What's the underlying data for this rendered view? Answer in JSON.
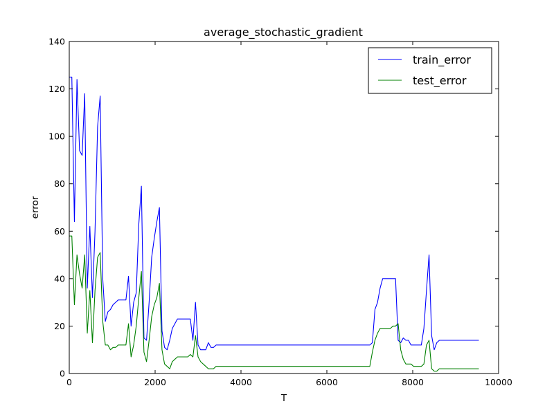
{
  "chart_data": {
    "type": "line",
    "title": "average_stochastic_gradient",
    "xlabel": "T",
    "ylabel": "error",
    "xlim": [
      0,
      10000
    ],
    "ylim": [
      0,
      140
    ],
    "xticks": [
      0,
      2000,
      4000,
      6000,
      8000,
      10000
    ],
    "yticks": [
      0,
      20,
      40,
      60,
      80,
      100,
      120,
      140
    ],
    "grid": false,
    "legend_position": "top-right",
    "series": [
      {
        "name": "train_error",
        "color": "#0000ff",
        "x": [
          0,
          60,
          120,
          180,
          240,
          300,
          360,
          420,
          480,
          540,
          600,
          660,
          720,
          780,
          840,
          900,
          960,
          1020,
          1080,
          1140,
          1200,
          1260,
          1320,
          1380,
          1440,
          1500,
          1560,
          1620,
          1680,
          1740,
          1800,
          1860,
          1920,
          1980,
          2040,
          2100,
          2160,
          2220,
          2280,
          2340,
          2400,
          2460,
          2520,
          2580,
          2640,
          2700,
          2760,
          2820,
          2880,
          2940,
          3000,
          3060,
          3120,
          3180,
          3240,
          3300,
          3360,
          3420,
          3480,
          3540,
          3600,
          4000,
          5000,
          6000,
          7000,
          7060,
          7120,
          7180,
          7240,
          7300,
          7360,
          7420,
          7480,
          7540,
          7600,
          7660,
          7720,
          7780,
          7840,
          7900,
          7960,
          8020,
          8080,
          8140,
          8200,
          8260,
          8320,
          8380,
          8440,
          8500,
          8560,
          8620,
          8680,
          8740,
          9000,
          9540
        ],
        "y": [
          125,
          125,
          64,
          124,
          94,
          92,
          118,
          36,
          62,
          32,
          60,
          104,
          117,
          40,
          22,
          26,
          27,
          29,
          30,
          31,
          31,
          31,
          31,
          41,
          20,
          30,
          34,
          63,
          79,
          15,
          14,
          30,
          49,
          57,
          64,
          70,
          18,
          11,
          10,
          14,
          19,
          21,
          23,
          23,
          23,
          23,
          23,
          23,
          14,
          30,
          12,
          10,
          10,
          10,
          13,
          11,
          11,
          12,
          12,
          12,
          12,
          12,
          12,
          12,
          12,
          13,
          27,
          30,
          36,
          40,
          40,
          40,
          40,
          40,
          40,
          14,
          13,
          15,
          14,
          14,
          12,
          12,
          12,
          12,
          12,
          19,
          35,
          50,
          16,
          10,
          13,
          14,
          14,
          14,
          14,
          14
        ]
      },
      {
        "name": "test_error",
        "color": "#008000",
        "x": [
          0,
          60,
          120,
          180,
          240,
          300,
          360,
          420,
          480,
          540,
          600,
          660,
          720,
          780,
          840,
          900,
          960,
          1020,
          1080,
          1140,
          1200,
          1260,
          1320,
          1380,
          1440,
          1500,
          1560,
          1620,
          1680,
          1740,
          1800,
          1860,
          1920,
          1980,
          2040,
          2100,
          2160,
          2220,
          2280,
          2340,
          2400,
          2460,
          2520,
          2580,
          2640,
          2700,
          2760,
          2820,
          2880,
          2940,
          3000,
          3060,
          3120,
          3180,
          3240,
          3300,
          3360,
          3420,
          3480,
          3540,
          3600,
          4000,
          5000,
          6000,
          7000,
          7060,
          7120,
          7180,
          7240,
          7300,
          7360,
          7420,
          7480,
          7540,
          7600,
          7660,
          7720,
          7780,
          7840,
          7900,
          7960,
          8020,
          8080,
          8140,
          8200,
          8260,
          8320,
          8380,
          8440,
          8500,
          8560,
          8620,
          8680,
          8740,
          9000,
          9540
        ],
        "y": [
          58,
          58,
          29,
          50,
          42,
          36,
          50,
          17,
          35,
          13,
          35,
          49,
          51,
          22,
          12,
          12,
          10,
          11,
          11,
          12,
          12,
          12,
          12,
          21,
          7,
          12,
          20,
          32,
          43,
          9,
          5,
          14,
          24,
          29,
          32,
          38,
          10,
          4,
          3,
          2,
          5,
          6,
          7,
          7,
          7,
          7,
          7,
          8,
          7,
          16,
          7,
          5,
          4,
          3,
          2,
          2,
          2,
          3,
          3,
          3,
          3,
          3,
          3,
          3,
          3,
          9,
          14,
          17,
          19,
          19,
          19,
          19,
          19,
          20,
          20,
          21,
          10,
          6,
          4,
          4,
          4,
          3,
          3,
          3,
          3,
          4,
          12,
          14,
          2,
          1,
          1,
          2,
          2,
          2,
          2,
          2
        ]
      }
    ]
  }
}
